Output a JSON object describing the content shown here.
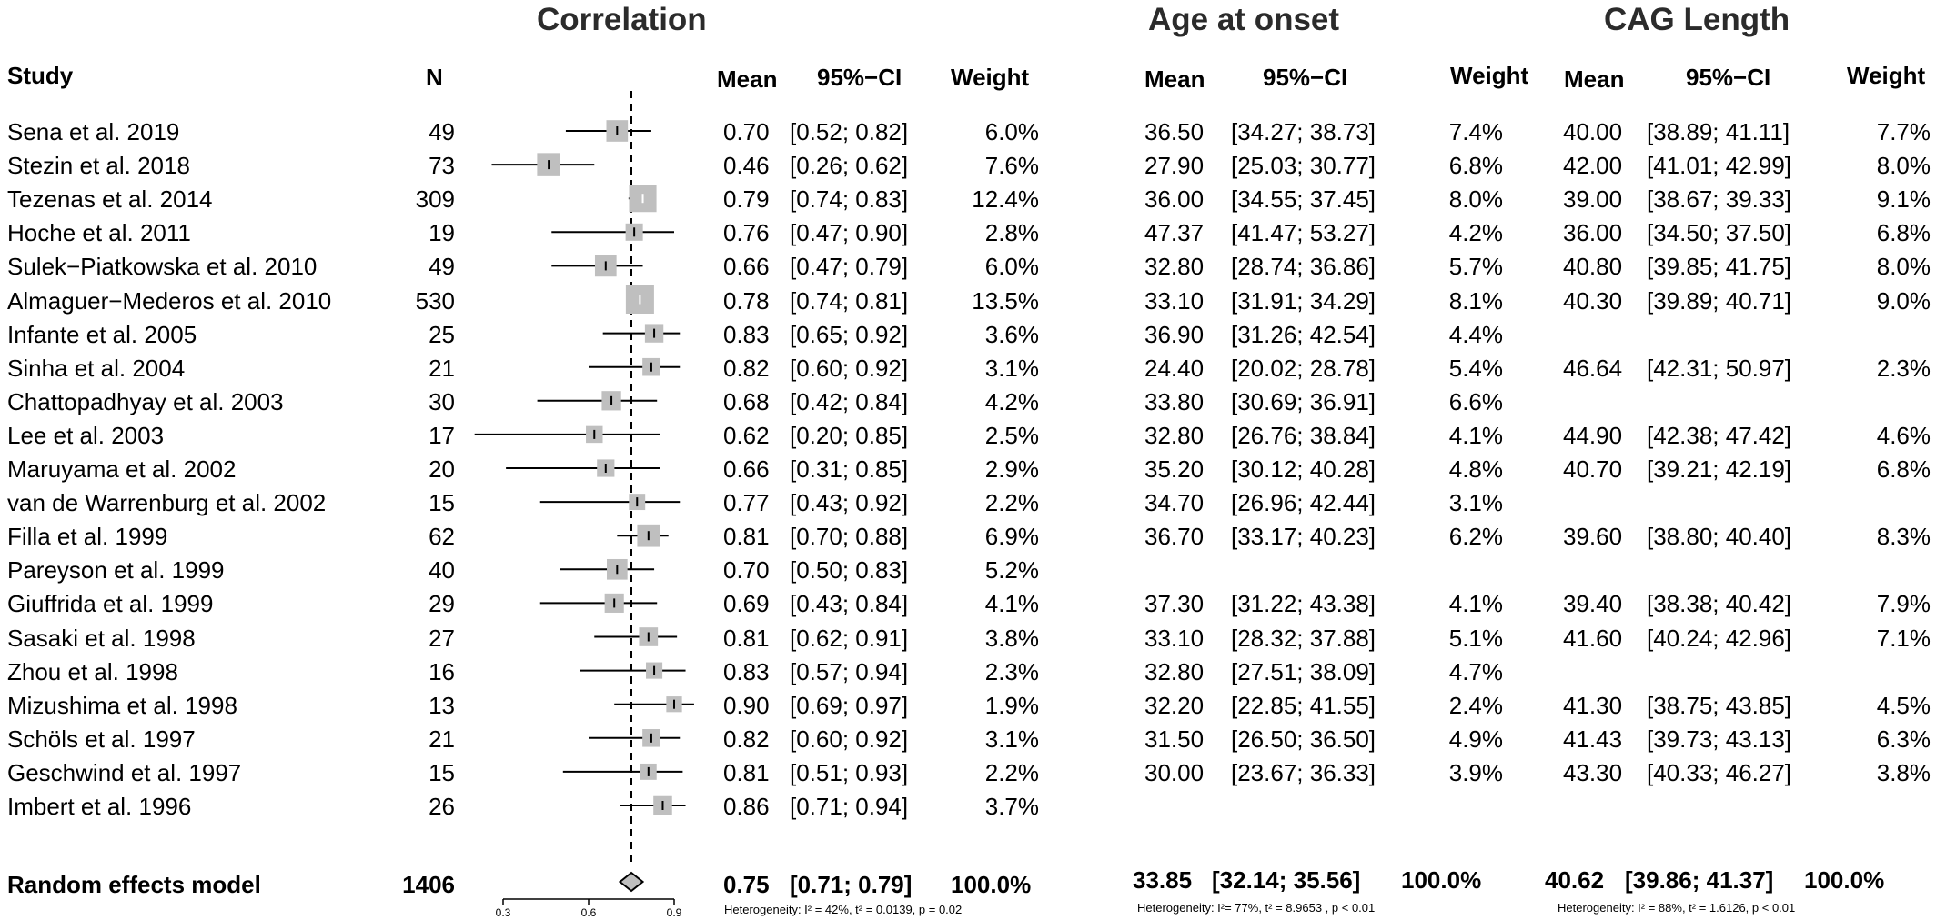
{
  "sections": {
    "correlation": "Correlation",
    "age": "Age at onset",
    "cag": "CAG Length"
  },
  "headers": {
    "study": "Study",
    "n": "N",
    "corr_mean": "Mean",
    "corr_ci": "95%−CI",
    "corr_weight": "Weight",
    "age_mean": "Mean",
    "age_ci": "95%−CI",
    "age_weight": "Weight",
    "cag_mean": "Mean",
    "cag_ci": "95%−CI",
    "cag_weight": "Weight"
  },
  "rows": [
    {
      "study": "Sena et al. 2019",
      "n": "49",
      "corr": {
        "mean": "0.70",
        "ci": "[0.52; 0.82]",
        "weight": "6.0%"
      },
      "age": {
        "mean": "36.50",
        "ci": "[34.27; 38.73]",
        "weight": "7.4%"
      },
      "cag": {
        "mean": "40.00",
        "ci": "[38.89; 41.11]",
        "weight": "7.7%"
      }
    },
    {
      "study": "Stezin et al. 2018",
      "n": "73",
      "corr": {
        "mean": "0.46",
        "ci": "[0.26; 0.62]",
        "weight": "7.6%"
      },
      "age": {
        "mean": "27.90",
        "ci": "[25.03; 30.77]",
        "weight": "6.8%"
      },
      "cag": {
        "mean": "42.00",
        "ci": "[41.01; 42.99]",
        "weight": "8.0%"
      }
    },
    {
      "study": "Tezenas et al. 2014",
      "n": "309",
      "corr": {
        "mean": "0.79",
        "ci": "[0.74; 0.83]",
        "weight": "12.4%"
      },
      "age": {
        "mean": "36.00",
        "ci": "[34.55; 37.45]",
        "weight": "8.0%"
      },
      "cag": {
        "mean": "39.00",
        "ci": "[38.67; 39.33]",
        "weight": "9.1%"
      }
    },
    {
      "study": "Hoche et al. 2011",
      "n": "19",
      "corr": {
        "mean": "0.76",
        "ci": "[0.47; 0.90]",
        "weight": "2.8%"
      },
      "age": {
        "mean": "47.37",
        "ci": "[41.47; 53.27]",
        "weight": "4.2%"
      },
      "cag": {
        "mean": "36.00",
        "ci": "[34.50; 37.50]",
        "weight": "6.8%"
      }
    },
    {
      "study": "Sulek−Piatkowska et al. 2010",
      "n": "49",
      "corr": {
        "mean": "0.66",
        "ci": "[0.47; 0.79]",
        "weight": "6.0%"
      },
      "age": {
        "mean": "32.80",
        "ci": "[28.74; 36.86]",
        "weight": "5.7%"
      },
      "cag": {
        "mean": "40.80",
        "ci": "[39.85; 41.75]",
        "weight": "8.0%"
      }
    },
    {
      "study": "Almaguer−Mederos et al. 2010",
      "n": "530",
      "corr": {
        "mean": "0.78",
        "ci": "[0.74; 0.81]",
        "weight": "13.5%"
      },
      "age": {
        "mean": "33.10",
        "ci": "[31.91; 34.29]",
        "weight": "8.1%"
      },
      "cag": {
        "mean": "40.30",
        "ci": "[39.89; 40.71]",
        "weight": "9.0%"
      }
    },
    {
      "study": "Infante et al. 2005",
      "n": "25",
      "corr": {
        "mean": "0.83",
        "ci": "[0.65; 0.92]",
        "weight": "3.6%"
      },
      "age": {
        "mean": "36.90",
        "ci": "[31.26; 42.54]",
        "weight": "4.4%"
      },
      "cag": null
    },
    {
      "study": "Sinha  et al. 2004",
      "n": "21",
      "corr": {
        "mean": "0.82",
        "ci": "[0.60; 0.92]",
        "weight": "3.1%"
      },
      "age": {
        "mean": "24.40",
        "ci": "[20.02; 28.78]",
        "weight": "5.4%"
      },
      "cag": {
        "mean": "46.64",
        "ci": "[42.31; 50.97]",
        "weight": "2.3%"
      }
    },
    {
      "study": "Chattopadhyay et al. 2003",
      "n": "30",
      "corr": {
        "mean": "0.68",
        "ci": "[0.42; 0.84]",
        "weight": "4.2%"
      },
      "age": {
        "mean": "33.80",
        "ci": "[30.69; 36.91]",
        "weight": "6.6%"
      },
      "cag": null
    },
    {
      "study": "Lee et al. 2003",
      "n": "17",
      "corr": {
        "mean": "0.62",
        "ci": "[0.20; 0.85]",
        "weight": "2.5%"
      },
      "age": {
        "mean": "32.80",
        "ci": "[26.76; 38.84]",
        "weight": "4.1%"
      },
      "cag": {
        "mean": "44.90",
        "ci": "[42.38; 47.42]",
        "weight": "4.6%"
      }
    },
    {
      "study": "Maruyama et al.  2002",
      "n": "20",
      "corr": {
        "mean": "0.66",
        "ci": "[0.31; 0.85]",
        "weight": "2.9%"
      },
      "age": {
        "mean": "35.20",
        "ci": "[30.12; 40.28]",
        "weight": "4.8%"
      },
      "cag": {
        "mean": "40.70",
        "ci": "[39.21; 42.19]",
        "weight": "6.8%"
      }
    },
    {
      "study": "van de Warrenburg  et al. 2002",
      "n": "15",
      "corr": {
        "mean": "0.77",
        "ci": "[0.43; 0.92]",
        "weight": "2.2%"
      },
      "age": {
        "mean": "34.70",
        "ci": "[26.96; 42.44]",
        "weight": "3.1%"
      },
      "cag": null
    },
    {
      "study": "Filla et al. 1999",
      "n": "62",
      "corr": {
        "mean": "0.81",
        "ci": "[0.70; 0.88]",
        "weight": "6.9%"
      },
      "age": {
        "mean": "36.70",
        "ci": "[33.17; 40.23]",
        "weight": "6.2%"
      },
      "cag": {
        "mean": "39.60",
        "ci": "[38.80; 40.40]",
        "weight": "8.3%"
      }
    },
    {
      "study": "Pareyson et al. 1999",
      "n": "40",
      "corr": {
        "mean": "0.70",
        "ci": "[0.50; 0.83]",
        "weight": "5.2%"
      },
      "age": null,
      "cag": null
    },
    {
      "study": "Giuffrida et al. 1999",
      "n": "29",
      "corr": {
        "mean": "0.69",
        "ci": "[0.43; 0.84]",
        "weight": "4.1%"
      },
      "age": {
        "mean": "37.30",
        "ci": "[31.22; 43.38]",
        "weight": "4.1%"
      },
      "cag": {
        "mean": "39.40",
        "ci": "[38.38; 40.42]",
        "weight": "7.9%"
      }
    },
    {
      "study": "Sasaki et al.  1998",
      "n": "27",
      "corr": {
        "mean": "0.81",
        "ci": "[0.62; 0.91]",
        "weight": "3.8%"
      },
      "age": {
        "mean": "33.10",
        "ci": "[28.32; 37.88]",
        "weight": "5.1%"
      },
      "cag": {
        "mean": "41.60",
        "ci": "[40.24; 42.96]",
        "weight": "7.1%"
      }
    },
    {
      "study": "Zhou et al. 1998",
      "n": "16",
      "corr": {
        "mean": "0.83",
        "ci": "[0.57; 0.94]",
        "weight": "2.3%"
      },
      "age": {
        "mean": "32.80",
        "ci": "[27.51; 38.09]",
        "weight": "4.7%"
      },
      "cag": null
    },
    {
      "study": "Mizushima et al. 1998",
      "n": "13",
      "corr": {
        "mean": "0.90",
        "ci": "[0.69; 0.97]",
        "weight": "1.9%"
      },
      "age": {
        "mean": "32.20",
        "ci": "[22.85; 41.55]",
        "weight": "2.4%"
      },
      "cag": {
        "mean": "41.30",
        "ci": "[38.75; 43.85]",
        "weight": "4.5%"
      }
    },
    {
      "study": "Schöls  et al. 1997",
      "n": "21",
      "corr": {
        "mean": "0.82",
        "ci": "[0.60; 0.92]",
        "weight": "3.1%"
      },
      "age": {
        "mean": "31.50",
        "ci": "[26.50; 36.50]",
        "weight": "4.9%"
      },
      "cag": {
        "mean": "41.43",
        "ci": "[39.73; 43.13]",
        "weight": "6.3%"
      }
    },
    {
      "study": "Geschwind et al. 1997",
      "n": "15",
      "corr": {
        "mean": "0.81",
        "ci": "[0.51; 0.93]",
        "weight": "2.2%"
      },
      "age": {
        "mean": "30.00",
        "ci": "[23.67; 36.33]",
        "weight": "3.9%"
      },
      "cag": {
        "mean": "43.30",
        "ci": "[40.33; 46.27]",
        "weight": "3.8%"
      }
    },
    {
      "study": "Imbert et al. 1996",
      "n": "26",
      "corr": {
        "mean": "0.86",
        "ci": "[0.71; 0.94]",
        "weight": "3.7%"
      },
      "age": null,
      "cag": null
    }
  ],
  "summary": {
    "label": "Random effects model",
    "n": "1406",
    "corr": {
      "mean": "0.75",
      "ci": "[0.71; 0.79]",
      "weight": "100.0%",
      "heterogeneity": "Heterogeneity: I² = 42%, t² = 0.0139, p = 0.02"
    },
    "age": {
      "mean": "33.85",
      "ci": "[32.14; 35.56]",
      "weight": "100.0%",
      "heterogeneity": "Heterogeneity: I²= 77%, t² = 8.9653 , p < 0.01"
    },
    "cag": {
      "mean": "40.62",
      "ci": "[39.86; 41.37]",
      "weight": "100.0%",
      "heterogeneity": "Heterogeneity: I² = 88%, t² = 1.6126, p < 0.01"
    }
  },
  "chart_data": {
    "type": "forest",
    "xlim": [
      0.3,
      0.9
    ],
    "ticks": [
      "0.3",
      "0.6",
      "0.9"
    ],
    "reference_line": 0.75,
    "marker_color": "#bfbfbf",
    "diamond": {
      "estimate": 0.75,
      "lower": 0.71,
      "upper": 0.79
    },
    "studies": [
      {
        "est": 0.7,
        "lo": 0.52,
        "hi": 0.82,
        "w": 6.0
      },
      {
        "est": 0.46,
        "lo": 0.26,
        "hi": 0.62,
        "w": 7.6
      },
      {
        "est": 0.79,
        "lo": 0.74,
        "hi": 0.83,
        "w": 12.4
      },
      {
        "est": 0.76,
        "lo": 0.47,
        "hi": 0.9,
        "w": 2.8
      },
      {
        "est": 0.66,
        "lo": 0.47,
        "hi": 0.79,
        "w": 6.0
      },
      {
        "est": 0.78,
        "lo": 0.74,
        "hi": 0.81,
        "w": 13.5
      },
      {
        "est": 0.83,
        "lo": 0.65,
        "hi": 0.92,
        "w": 3.6
      },
      {
        "est": 0.82,
        "lo": 0.6,
        "hi": 0.92,
        "w": 3.1
      },
      {
        "est": 0.68,
        "lo": 0.42,
        "hi": 0.84,
        "w": 4.2
      },
      {
        "est": 0.62,
        "lo": 0.2,
        "hi": 0.85,
        "w": 2.5
      },
      {
        "est": 0.66,
        "lo": 0.31,
        "hi": 0.85,
        "w": 2.9
      },
      {
        "est": 0.77,
        "lo": 0.43,
        "hi": 0.92,
        "w": 2.2
      },
      {
        "est": 0.81,
        "lo": 0.7,
        "hi": 0.88,
        "w": 6.9
      },
      {
        "est": 0.7,
        "lo": 0.5,
        "hi": 0.83,
        "w": 5.2
      },
      {
        "est": 0.69,
        "lo": 0.43,
        "hi": 0.84,
        "w": 4.1
      },
      {
        "est": 0.81,
        "lo": 0.62,
        "hi": 0.91,
        "w": 3.8
      },
      {
        "est": 0.83,
        "lo": 0.57,
        "hi": 0.94,
        "w": 2.3
      },
      {
        "est": 0.9,
        "lo": 0.69,
        "hi": 0.97,
        "w": 1.9
      },
      {
        "est": 0.82,
        "lo": 0.6,
        "hi": 0.92,
        "w": 3.1
      },
      {
        "est": 0.81,
        "lo": 0.51,
        "hi": 0.93,
        "w": 2.2
      },
      {
        "est": 0.86,
        "lo": 0.71,
        "hi": 0.94,
        "w": 3.7
      }
    ]
  }
}
